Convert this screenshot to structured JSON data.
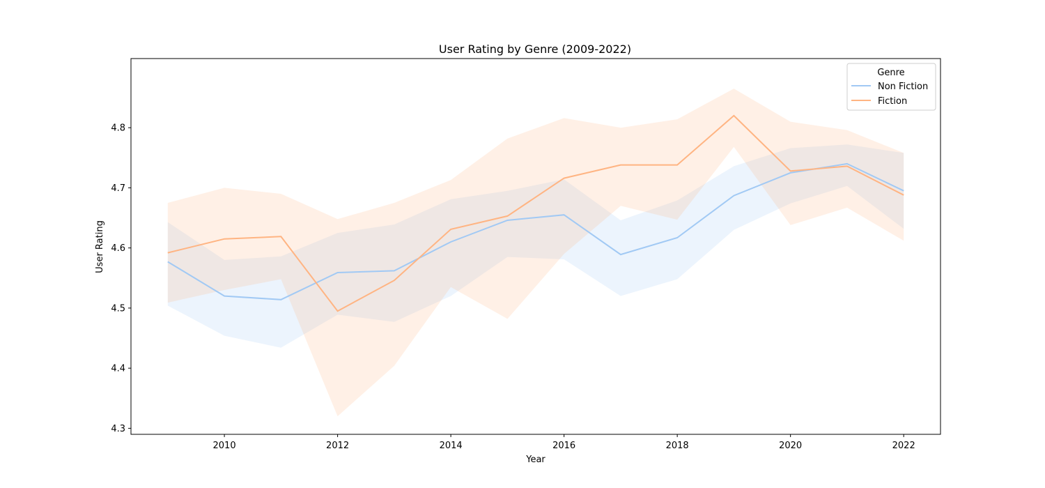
{
  "chart_data": {
    "type": "line",
    "title": "User Rating by Genre (2009-2022)",
    "xlabel": "Year",
    "ylabel": "User Rating",
    "xlim": [
      2008.35,
      2022.65
    ],
    "ylim": [
      4.29,
      4.915
    ],
    "x_ticks": [
      2010,
      2012,
      2014,
      2016,
      2018,
      2020,
      2022
    ],
    "y_ticks": [
      4.3,
      4.4,
      4.5,
      4.6,
      4.7,
      4.8
    ],
    "grid": false,
    "legend": {
      "title": "Genre",
      "placement": "top-right"
    },
    "x": [
      2009,
      2010,
      2011,
      2012,
      2013,
      2014,
      2015,
      2016,
      2017,
      2018,
      2019,
      2020,
      2021,
      2022
    ],
    "series": [
      {
        "name": "Non Fiction",
        "color": "#a1c9f4",
        "values": [
          4.577,
          4.52,
          4.514,
          4.559,
          4.562,
          4.61,
          4.646,
          4.655,
          4.589,
          4.617,
          4.687,
          4.725,
          4.74,
          4.695
        ],
        "ci_low": [
          4.504,
          4.454,
          4.434,
          4.489,
          4.477,
          4.52,
          4.585,
          4.581,
          4.52,
          4.548,
          4.63,
          4.674,
          4.703,
          4.632
        ],
        "ci_high": [
          4.643,
          4.58,
          4.586,
          4.625,
          4.639,
          4.681,
          4.695,
          4.714,
          4.646,
          4.679,
          4.736,
          4.766,
          4.772,
          4.758
        ]
      },
      {
        "name": "Fiction",
        "color": "#ffb482",
        "values": [
          4.592,
          4.615,
          4.619,
          4.495,
          4.546,
          4.631,
          4.653,
          4.716,
          4.738,
          4.738,
          4.82,
          4.728,
          4.736,
          4.688
        ],
        "ci_low": [
          4.509,
          4.53,
          4.548,
          4.32,
          4.404,
          4.535,
          4.482,
          4.59,
          4.67,
          4.647,
          4.768,
          4.638,
          4.667,
          4.612
        ],
        "ci_high": [
          4.675,
          4.7,
          4.69,
          4.648,
          4.675,
          4.713,
          4.782,
          4.816,
          4.8,
          4.814,
          4.865,
          4.81,
          4.796,
          4.758
        ]
      }
    ]
  }
}
